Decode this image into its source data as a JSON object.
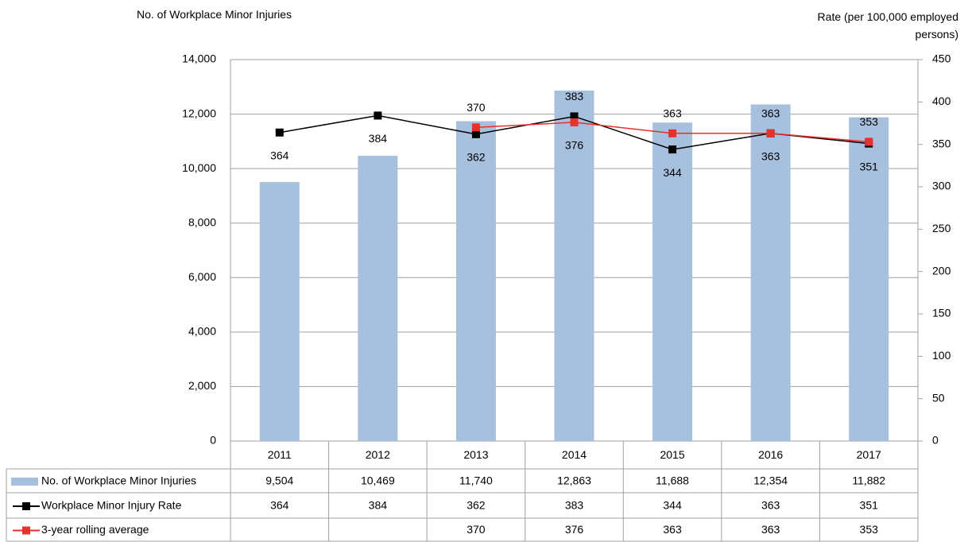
{
  "chart_data": {
    "type": "bar",
    "y_label": "No. of Workplace Minor Injuries",
    "y2_label": "Rate (per 100,000 employed persons)",
    "categories": [
      "2011",
      "2012",
      "2013",
      "2014",
      "2015",
      "2016",
      "2017"
    ],
    "series": [
      {
        "name": "No. of Workplace Minor Injuries",
        "type": "bar",
        "color": "#a6c0de",
        "values": [
          9504,
          10469,
          11740,
          12863,
          11688,
          12354,
          11882
        ],
        "value_labels": [
          "9,504",
          "10,469",
          "11,740",
          "12,863",
          "11,688",
          "12,354",
          "11,882"
        ]
      },
      {
        "name": "Workplace Minor Injury Rate",
        "type": "line",
        "axis": "y2",
        "color": "#000000",
        "values": [
          364,
          384,
          362,
          383,
          344,
          363,
          351
        ]
      },
      {
        "name": "3-year rolling average",
        "type": "line",
        "axis": "y2",
        "color": "#e8312a",
        "values": [
          null,
          null,
          370,
          376,
          363,
          363,
          353
        ]
      }
    ],
    "ylim": [
      0,
      14000
    ],
    "yticks": [
      0,
      {
        "value": 2000,
        "label": "2,000"
      },
      {
        "value": 4000,
        "label": "4,000"
      },
      {
        "value": 6000,
        "label": "6,000"
      },
      {
        "value": 8000,
        "label": "8,000"
      },
      {
        "value": 10000,
        "label": "10,000"
      },
      {
        "value": 12000,
        "label": "12,000"
      },
      {
        "value": 14000,
        "label": "14,000"
      }
    ],
    "y2lim": [
      0,
      450
    ],
    "y2ticks": [
      0,
      50,
      100,
      150,
      200,
      250,
      300,
      350,
      400,
      450
    ],
    "grid": true
  }
}
